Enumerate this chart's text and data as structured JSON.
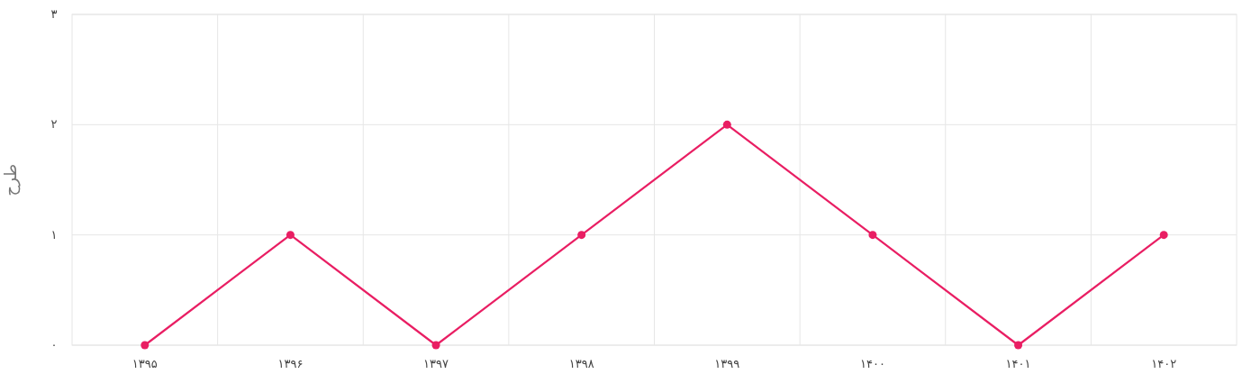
{
  "chart_data": {
    "type": "line",
    "ylabel": "طرح",
    "categories": [
      "۱۳۹۵",
      "۱۳۹۶",
      "۱۳۹۷",
      "۱۳۹۸",
      "۱۳۹۹",
      "۱۴۰۰",
      "۱۴۰۱",
      "۱۴۰۲"
    ],
    "series": [
      {
        "color": "#e91e63",
        "values": [
          0,
          1,
          0,
          1,
          2,
          1,
          0,
          1
        ]
      }
    ],
    "ylim": [
      0,
      3
    ],
    "yticks": [
      {
        "value": 0,
        "label": "۰"
      },
      {
        "value": 1,
        "label": "۱"
      },
      {
        "value": 2,
        "label": "۲"
      },
      {
        "value": 3,
        "label": "۳"
      }
    ],
    "grid": true,
    "marker": "circle",
    "line_style": "solid"
  }
}
